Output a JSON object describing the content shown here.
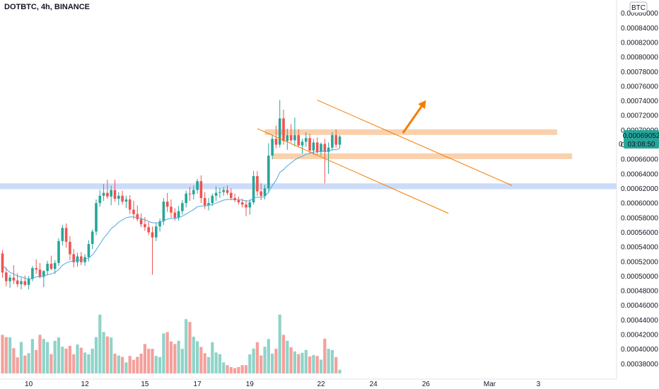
{
  "header": {
    "symbol_label": "DOTBTC, 4h, BINANCE"
  },
  "scale_badge": "BTC",
  "price_tag": {
    "price": "0.00069052",
    "countdown": "03:08:50",
    "marker": "0"
  },
  "colors": {
    "up": "#26a69a",
    "down": "#ef5350",
    "vol_up": "#8fd3c8",
    "vol_down": "#f4a09c",
    "ma": "#4fa7de",
    "orange": "#f57c00",
    "zone_orange": "#f8c9a0",
    "zone_blue": "#c3d5f7",
    "tag_bg": "#26a69a"
  },
  "chart_data": {
    "type": "candlestick",
    "y_axis": {
      "range": [
        0.000374,
        0.000866
      ],
      "tick_labels": [
        "0.00086000",
        "0.00084000",
        "0.00082000",
        "0.00080000",
        "0.00078000",
        "0.00076000",
        "0.00074000",
        "0.00072000",
        "0.00070000",
        "0.00068000",
        "0.00066000",
        "0.00064000",
        "0.00062000",
        "0.00060000",
        "0.00058000",
        "0.00056000",
        "0.00054000",
        "0.00052000",
        "0.00050000",
        "0.00048000",
        "0.00046000",
        "0.00044000",
        "0.00042000",
        "0.00040000",
        "0.00038000"
      ]
    },
    "x_axis": {
      "tick_labels": [
        "10",
        "12",
        "15",
        "17",
        "19",
        "22",
        "24",
        "26",
        "Mar",
        "3"
      ],
      "tick_bar_index": [
        7,
        22,
        38,
        52,
        66,
        85,
        99,
        113,
        130,
        143
      ]
    },
    "candles": [
      {
        "o": 0.000531,
        "h": 0.000536,
        "l": 0.000498,
        "c": 0.000505
      },
      {
        "o": 0.000505,
        "h": 0.000512,
        "l": 0.000486,
        "c": 0.000493
      },
      {
        "o": 0.000493,
        "h": 0.000502,
        "l": 0.000484,
        "c": 0.000498
      },
      {
        "o": 0.000498,
        "h": 0.000515,
        "l": 0.000489,
        "c": 0.000494
      },
      {
        "o": 0.000494,
        "h": 0.000504,
        "l": 0.000485,
        "c": 0.000489
      },
      {
        "o": 0.000489,
        "h": 0.000498,
        "l": 0.000482,
        "c": 0.000493
      },
      {
        "o": 0.000493,
        "h": 0.000501,
        "l": 0.000486,
        "c": 0.000488
      },
      {
        "o": 0.000488,
        "h": 0.0005,
        "l": 0.000482,
        "c": 0.000496
      },
      {
        "o": 0.000496,
        "h": 0.000514,
        "l": 0.000493,
        "c": 0.000511
      },
      {
        "o": 0.000511,
        "h": 0.000523,
        "l": 0.000503,
        "c": 0.000509
      },
      {
        "o": 0.000509,
        "h": 0.000518,
        "l": 0.000497,
        "c": 0.000499
      },
      {
        "o": 0.000499,
        "h": 0.000508,
        "l": 0.000485,
        "c": 0.000507
      },
      {
        "o": 0.000507,
        "h": 0.000521,
        "l": 0.000501,
        "c": 0.000517
      },
      {
        "o": 0.000517,
        "h": 0.000528,
        "l": 0.000508,
        "c": 0.00051
      },
      {
        "o": 0.00051,
        "h": 0.000522,
        "l": 0.000503,
        "c": 0.000518
      },
      {
        "o": 0.000518,
        "h": 0.000552,
        "l": 0.000514,
        "c": 0.000548
      },
      {
        "o": 0.000548,
        "h": 0.00057,
        "l": 0.000542,
        "c": 0.000566
      },
      {
        "o": 0.000566,
        "h": 0.000572,
        "l": 0.000539,
        "c": 0.000547
      },
      {
        "o": 0.000547,
        "h": 0.000555,
        "l": 0.000522,
        "c": 0.00053
      },
      {
        "o": 0.00053,
        "h": 0.000537,
        "l": 0.000512,
        "c": 0.000519
      },
      {
        "o": 0.000519,
        "h": 0.000532,
        "l": 0.000513,
        "c": 0.000527
      },
      {
        "o": 0.000527,
        "h": 0.000533,
        "l": 0.000515,
        "c": 0.000519
      },
      {
        "o": 0.000519,
        "h": 0.00053,
        "l": 0.000514,
        "c": 0.000526
      },
      {
        "o": 0.000526,
        "h": 0.000549,
        "l": 0.00052,
        "c": 0.000544
      },
      {
        "o": 0.000544,
        "h": 0.000564,
        "l": 0.000537,
        "c": 0.000561
      },
      {
        "o": 0.000561,
        "h": 0.000605,
        "l": 0.000556,
        "c": 0.0006
      },
      {
        "o": 0.0006,
        "h": 0.000618,
        "l": 0.000595,
        "c": 0.00061
      },
      {
        "o": 0.00061,
        "h": 0.000626,
        "l": 0.000603,
        "c": 0.000614
      },
      {
        "o": 0.000614,
        "h": 0.000632,
        "l": 0.000606,
        "c": 0.000609
      },
      {
        "o": 0.000609,
        "h": 0.000624,
        "l": 0.000597,
        "c": 0.000618
      },
      {
        "o": 0.000618,
        "h": 0.000632,
        "l": 0.000602,
        "c": 0.000606
      },
      {
        "o": 0.000606,
        "h": 0.000615,
        "l": 0.000597,
        "c": 0.00061
      },
      {
        "o": 0.00061,
        "h": 0.000617,
        "l": 0.000598,
        "c": 0.000602
      },
      {
        "o": 0.000602,
        "h": 0.00061,
        "l": 0.000593,
        "c": 0.000605
      },
      {
        "o": 0.000605,
        "h": 0.000611,
        "l": 0.000585,
        "c": 0.000591
      },
      {
        "o": 0.000591,
        "h": 0.000603,
        "l": 0.000578,
        "c": 0.000585
      },
      {
        "o": 0.000585,
        "h": 0.000597,
        "l": 0.000575,
        "c": 0.000578
      },
      {
        "o": 0.000578,
        "h": 0.000586,
        "l": 0.000567,
        "c": 0.000571
      },
      {
        "o": 0.000571,
        "h": 0.000581,
        "l": 0.000562,
        "c": 0.000567
      },
      {
        "o": 0.000567,
        "h": 0.000574,
        "l": 0.000556,
        "c": 0.00056
      },
      {
        "o": 0.00056,
        "h": 0.000568,
        "l": 0.000502,
        "c": 0.000553
      },
      {
        "o": 0.000553,
        "h": 0.000573,
        "l": 0.000548,
        "c": 0.000568
      },
      {
        "o": 0.000568,
        "h": 0.000579,
        "l": 0.000561,
        "c": 0.000575
      },
      {
        "o": 0.000575,
        "h": 0.000607,
        "l": 0.00057,
        "c": 0.000602
      },
      {
        "o": 0.000602,
        "h": 0.000614,
        "l": 0.000588,
        "c": 0.000595
      },
      {
        "o": 0.000595,
        "h": 0.000605,
        "l": 0.00058,
        "c": 0.000587
      },
      {
        "o": 0.000587,
        "h": 0.000593,
        "l": 0.000576,
        "c": 0.00058
      },
      {
        "o": 0.00058,
        "h": 0.000596,
        "l": 0.000576,
        "c": 0.000589
      },
      {
        "o": 0.000589,
        "h": 0.000604,
        "l": 0.000584,
        "c": 0.0006
      },
      {
        "o": 0.0006,
        "h": 0.000617,
        "l": 0.000594,
        "c": 0.000613
      },
      {
        "o": 0.000613,
        "h": 0.000622,
        "l": 0.000603,
        "c": 0.000612
      },
      {
        "o": 0.000612,
        "h": 0.000624,
        "l": 0.000605,
        "c": 0.000618
      },
      {
        "o": 0.000618,
        "h": 0.000633,
        "l": 0.000613,
        "c": 0.00063
      },
      {
        "o": 0.00063,
        "h": 0.000638,
        "l": 0.0006,
        "c": 0.000607
      },
      {
        "o": 0.000607,
        "h": 0.000615,
        "l": 0.000592,
        "c": 0.000597
      },
      {
        "o": 0.000597,
        "h": 0.000607,
        "l": 0.00059,
        "c": 0.0006
      },
      {
        "o": 0.0006,
        "h": 0.000613,
        "l": 0.000596,
        "c": 0.00061
      },
      {
        "o": 0.00061,
        "h": 0.000623,
        "l": 0.000603,
        "c": 0.000614
      },
      {
        "o": 0.000614,
        "h": 0.000621,
        "l": 0.000607,
        "c": 0.000615
      },
      {
        "o": 0.000615,
        "h": 0.000622,
        "l": 0.00061,
        "c": 0.000618
      },
      {
        "o": 0.000618,
        "h": 0.000624,
        "l": 0.000611,
        "c": 0.000614
      },
      {
        "o": 0.000614,
        "h": 0.00062,
        "l": 0.000604,
        "c": 0.000607
      },
      {
        "o": 0.000607,
        "h": 0.000613,
        "l": 0.000601,
        "c": 0.000604
      },
      {
        "o": 0.000604,
        "h": 0.000609,
        "l": 0.000598,
        "c": 0.000601
      },
      {
        "o": 0.000601,
        "h": 0.000606,
        "l": 0.000594,
        "c": 0.000598
      },
      {
        "o": 0.000598,
        "h": 0.000604,
        "l": 0.000582,
        "c": 0.000594
      },
      {
        "o": 0.000594,
        "h": 0.000605,
        "l": 0.000584,
        "c": 0.000601
      },
      {
        "o": 0.000601,
        "h": 0.000644,
        "l": 0.000598,
        "c": 0.000637
      },
      {
        "o": 0.000637,
        "h": 0.000644,
        "l": 0.00061,
        "c": 0.000616
      },
      {
        "o": 0.000616,
        "h": 0.000627,
        "l": 0.000604,
        "c": 0.00061
      },
      {
        "o": 0.00061,
        "h": 0.000625,
        "l": 0.000605,
        "c": 0.00062
      },
      {
        "o": 0.00062,
        "h": 0.000682,
        "l": 0.000614,
        "c": 0.000665
      },
      {
        "o": 0.000665,
        "h": 0.000693,
        "l": 0.00066,
        "c": 0.000688
      },
      {
        "o": 0.000688,
        "h": 0.000706,
        "l": 0.000675,
        "c": 0.00068
      },
      {
        "o": 0.00068,
        "h": 0.000741,
        "l": 0.000676,
        "c": 0.000716
      },
      {
        "o": 0.000716,
        "h": 0.000728,
        "l": 0.00068,
        "c": 0.000685
      },
      {
        "o": 0.000685,
        "h": 0.000702,
        "l": 0.000673,
        "c": 0.000693
      },
      {
        "o": 0.000693,
        "h": 0.000708,
        "l": 0.000683,
        "c": 0.000686
      },
      {
        "o": 0.000686,
        "h": 0.000717,
        "l": 0.000678,
        "c": 0.000693
      },
      {
        "o": 0.000693,
        "h": 0.000701,
        "l": 0.000677,
        "c": 0.000679
      },
      {
        "o": 0.000679,
        "h": 0.000688,
        "l": 0.000668,
        "c": 0.000684
      },
      {
        "o": 0.000684,
        "h": 0.000697,
        "l": 0.000677,
        "c": 0.000689
      },
      {
        "o": 0.000689,
        "h": 0.000695,
        "l": 0.000668,
        "c": 0.000672
      },
      {
        "o": 0.000672,
        "h": 0.000688,
        "l": 0.000666,
        "c": 0.000683
      },
      {
        "o": 0.000683,
        "h": 0.00069,
        "l": 0.000667,
        "c": 0.00067
      },
      {
        "o": 0.00067,
        "h": 0.000683,
        "l": 0.000665,
        "c": 0.000681
      },
      {
        "o": 0.000681,
        "h": 0.000688,
        "l": 0.000627,
        "c": 0.00067
      },
      {
        "o": 0.00067,
        "h": 0.000683,
        "l": 0.00064,
        "c": 0.000676
      },
      {
        "o": 0.000676,
        "h": 0.000697,
        "l": 0.000672,
        "c": 0.000693
      },
      {
        "o": 0.000693,
        "h": 0.000701,
        "l": 0.000676,
        "c": 0.00068
      },
      {
        "o": 0.00068,
        "h": 0.000693,
        "l": 0.000675,
        "c": 0.000691
      }
    ],
    "volume_max": 0.0001,
    "volumes": [
      4.2e-05,
      3.95e-05,
      3.92e-05,
      2.75e-05,
      1.75e-05,
      3.42e-05,
      1.95e-05,
      2.2e-05,
      3.75e-05,
      2.55e-05,
      4.2e-05,
      3.75e-05,
      3.42e-05,
      2.1e-05,
      3.55e-05,
      3.92e-05,
      2.9e-05,
      2.7e-05,
      3e-05,
      2.08e-05,
      3.15e-05,
      2.8e-05,
      2.28e-05,
      2.08e-05,
      2.7e-05,
      3.95e-05,
      6.4e-05,
      4.5e-05,
      4.02e-05,
      3.9e-05,
      2.15e-05,
      1.95e-05,
      1.8e-05,
      1.2e-05,
      1.9e-05,
      1.48e-05,
      1.8e-05,
      2.15e-05,
      3.2e-05,
      2.68e-05,
      2.68e-05,
      1.9e-05,
      1.78e-05,
      4.35e-05,
      4.5e-05,
      3.48e-05,
      3.2e-05,
      3.55e-05,
      2.68e-05,
      5.9e-05,
      5.6e-05,
      4e-05,
      3.5e-05,
      2.88e-05,
      2.2e-05,
      1.78e-05,
      3.4e-05,
      2.28e-05,
      2.1e-05,
      1.2e-05,
      9e-06,
      7e-06,
      5.8e-06,
      7e-06,
      9e-06,
      9e-06,
      2.08e-05,
      2.7e-05,
      3.4e-05,
      1.95e-05,
      2.9e-05,
      3.75e-05,
      2.15e-05,
      2.68e-05,
      6.4e-05,
      4.2e-05,
      3.55e-05,
      2.85e-05,
      2.4e-05,
      2.1e-05,
      2.25e-05,
      2.55e-05,
      1.85e-05,
      2e-05,
      1.9e-05,
      1.5e-05,
      3.78e-05,
      2.68e-05,
      2.55e-05,
      1.78e-05,
      4e-06
    ],
    "moving_average": [
      0.000515,
      0.00051,
      0.000505,
      0.000503,
      0.0005,
      0.000499,
      0.000497,
      0.000496,
      0.000497,
      0.000499,
      0.000499,
      0.0005,
      0.000502,
      0.000503,
      0.000505,
      0.000509,
      0.000515,
      0.000518,
      0.00052,
      0.000521,
      0.000522,
      0.000522,
      0.000523,
      0.000525,
      0.000529,
      0.000536,
      0.000544,
      0.000552,
      0.000558,
      0.000565,
      0.000569,
      0.000574,
      0.000577,
      0.00058,
      0.000581,
      0.000581,
      0.00058,
      0.000579,
      0.000577,
      0.000575,
      0.000573,
      0.000573,
      0.000573,
      0.000576,
      0.000578,
      0.000579,
      0.000579,
      0.00058,
      0.000582,
      0.000585,
      0.000588,
      0.000591,
      0.000595,
      0.000596,
      0.000596,
      0.000597,
      0.000598,
      0.0006,
      0.000602,
      0.000604,
      0.000605,
      0.000605,
      0.000605,
      0.000605,
      0.000604,
      0.000603,
      0.000603,
      0.000607,
      0.000608,
      0.000608,
      0.000609,
      0.000615,
      0.000624,
      0.000631,
      0.000642,
      0.000646,
      0.000651,
      0.000655,
      0.000659,
      0.000662,
      0.000664,
      0.000667,
      0.000668,
      0.00067,
      0.00067,
      0.000671,
      0.000671,
      0.000671,
      0.000673,
      0.000673,
      0.000675
    ],
    "zones": [
      {
        "name": "upper-resistance",
        "from": 0.000697,
        "to": 0.000701,
        "bar_from": 70,
        "bar_to": 148
      },
      {
        "name": "mid-support",
        "from": 0.000664,
        "to": 0.000668,
        "bar_from": 72,
        "bar_to": 152
      },
      {
        "name": "blue-support",
        "from": 0.000619,
        "to": 0.000627,
        "bar_from": -2,
        "bar_to": 170
      }
    ],
    "trendlines": [
      {
        "name": "channel-upper",
        "from": {
          "bar": 84,
          "price": 0.000741
        },
        "to": {
          "bar": 136,
          "price": 0.000624
        }
      },
      {
        "name": "channel-lower",
        "from": {
          "bar": 68,
          "price": 0.000702
        },
        "to": {
          "bar": 119,
          "price": 0.000586
        }
      }
    ],
    "arrow": {
      "from": {
        "bar": 107,
        "price": 0.000697
      },
      "to": {
        "bar": 113,
        "price": 0.000741
      }
    }
  }
}
